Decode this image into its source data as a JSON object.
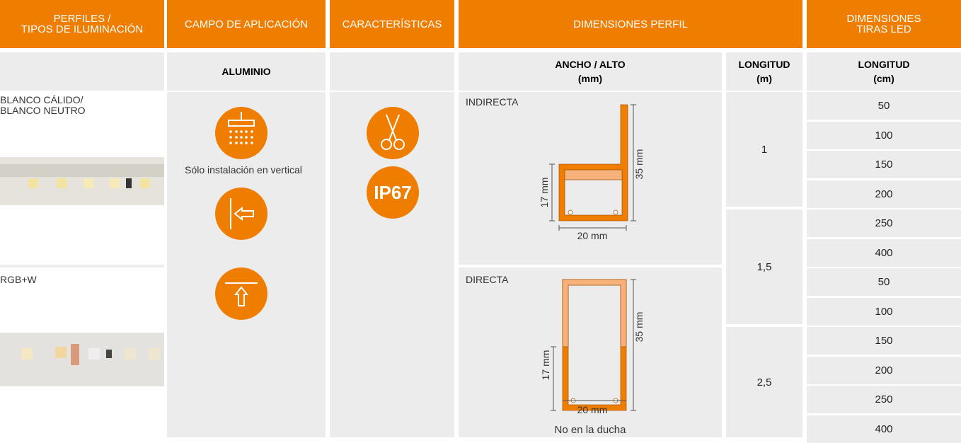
{
  "header": {
    "profiles": "PERFILES /\nTIPOS DE ILUMINACIÓN",
    "application": "CAMPO DE APLICACIÓN",
    "features": "CARACTERÍSTICAS",
    "profile_dimensions": "DIMENSIONES PERFIL",
    "strip_dimensions": "DIMENSIONES\nTIRAS LED"
  },
  "subheader": {
    "material": "ALUMINIO",
    "width_height": "ANCHO / ALTO\n(mm)",
    "length_m": "LONGITUD\n(m)",
    "length_cm": "LONGITUD\n(cm)"
  },
  "lighting_types": [
    "BLANCO CÁLIDO/\nBLANCO NEUTRO",
    "RGB+W"
  ],
  "application_note": "Sólo instalación en vertical",
  "protection": "IP67",
  "profiles": [
    {
      "name": "INDIRECTA",
      "height": "35 mm",
      "inner_height": "17 mm",
      "width": "20 mm"
    },
    {
      "name": "DIRECTA",
      "height": "35 mm",
      "inner_height": "17 mm",
      "width": "20 mm",
      "note": "No en la ducha"
    }
  ],
  "lengths_m": [
    "1",
    "1,5",
    "2,5"
  ],
  "lengths_cm": [
    50,
    100,
    150,
    200,
    250,
    400,
    50,
    100,
    150,
    200,
    250,
    400
  ]
}
